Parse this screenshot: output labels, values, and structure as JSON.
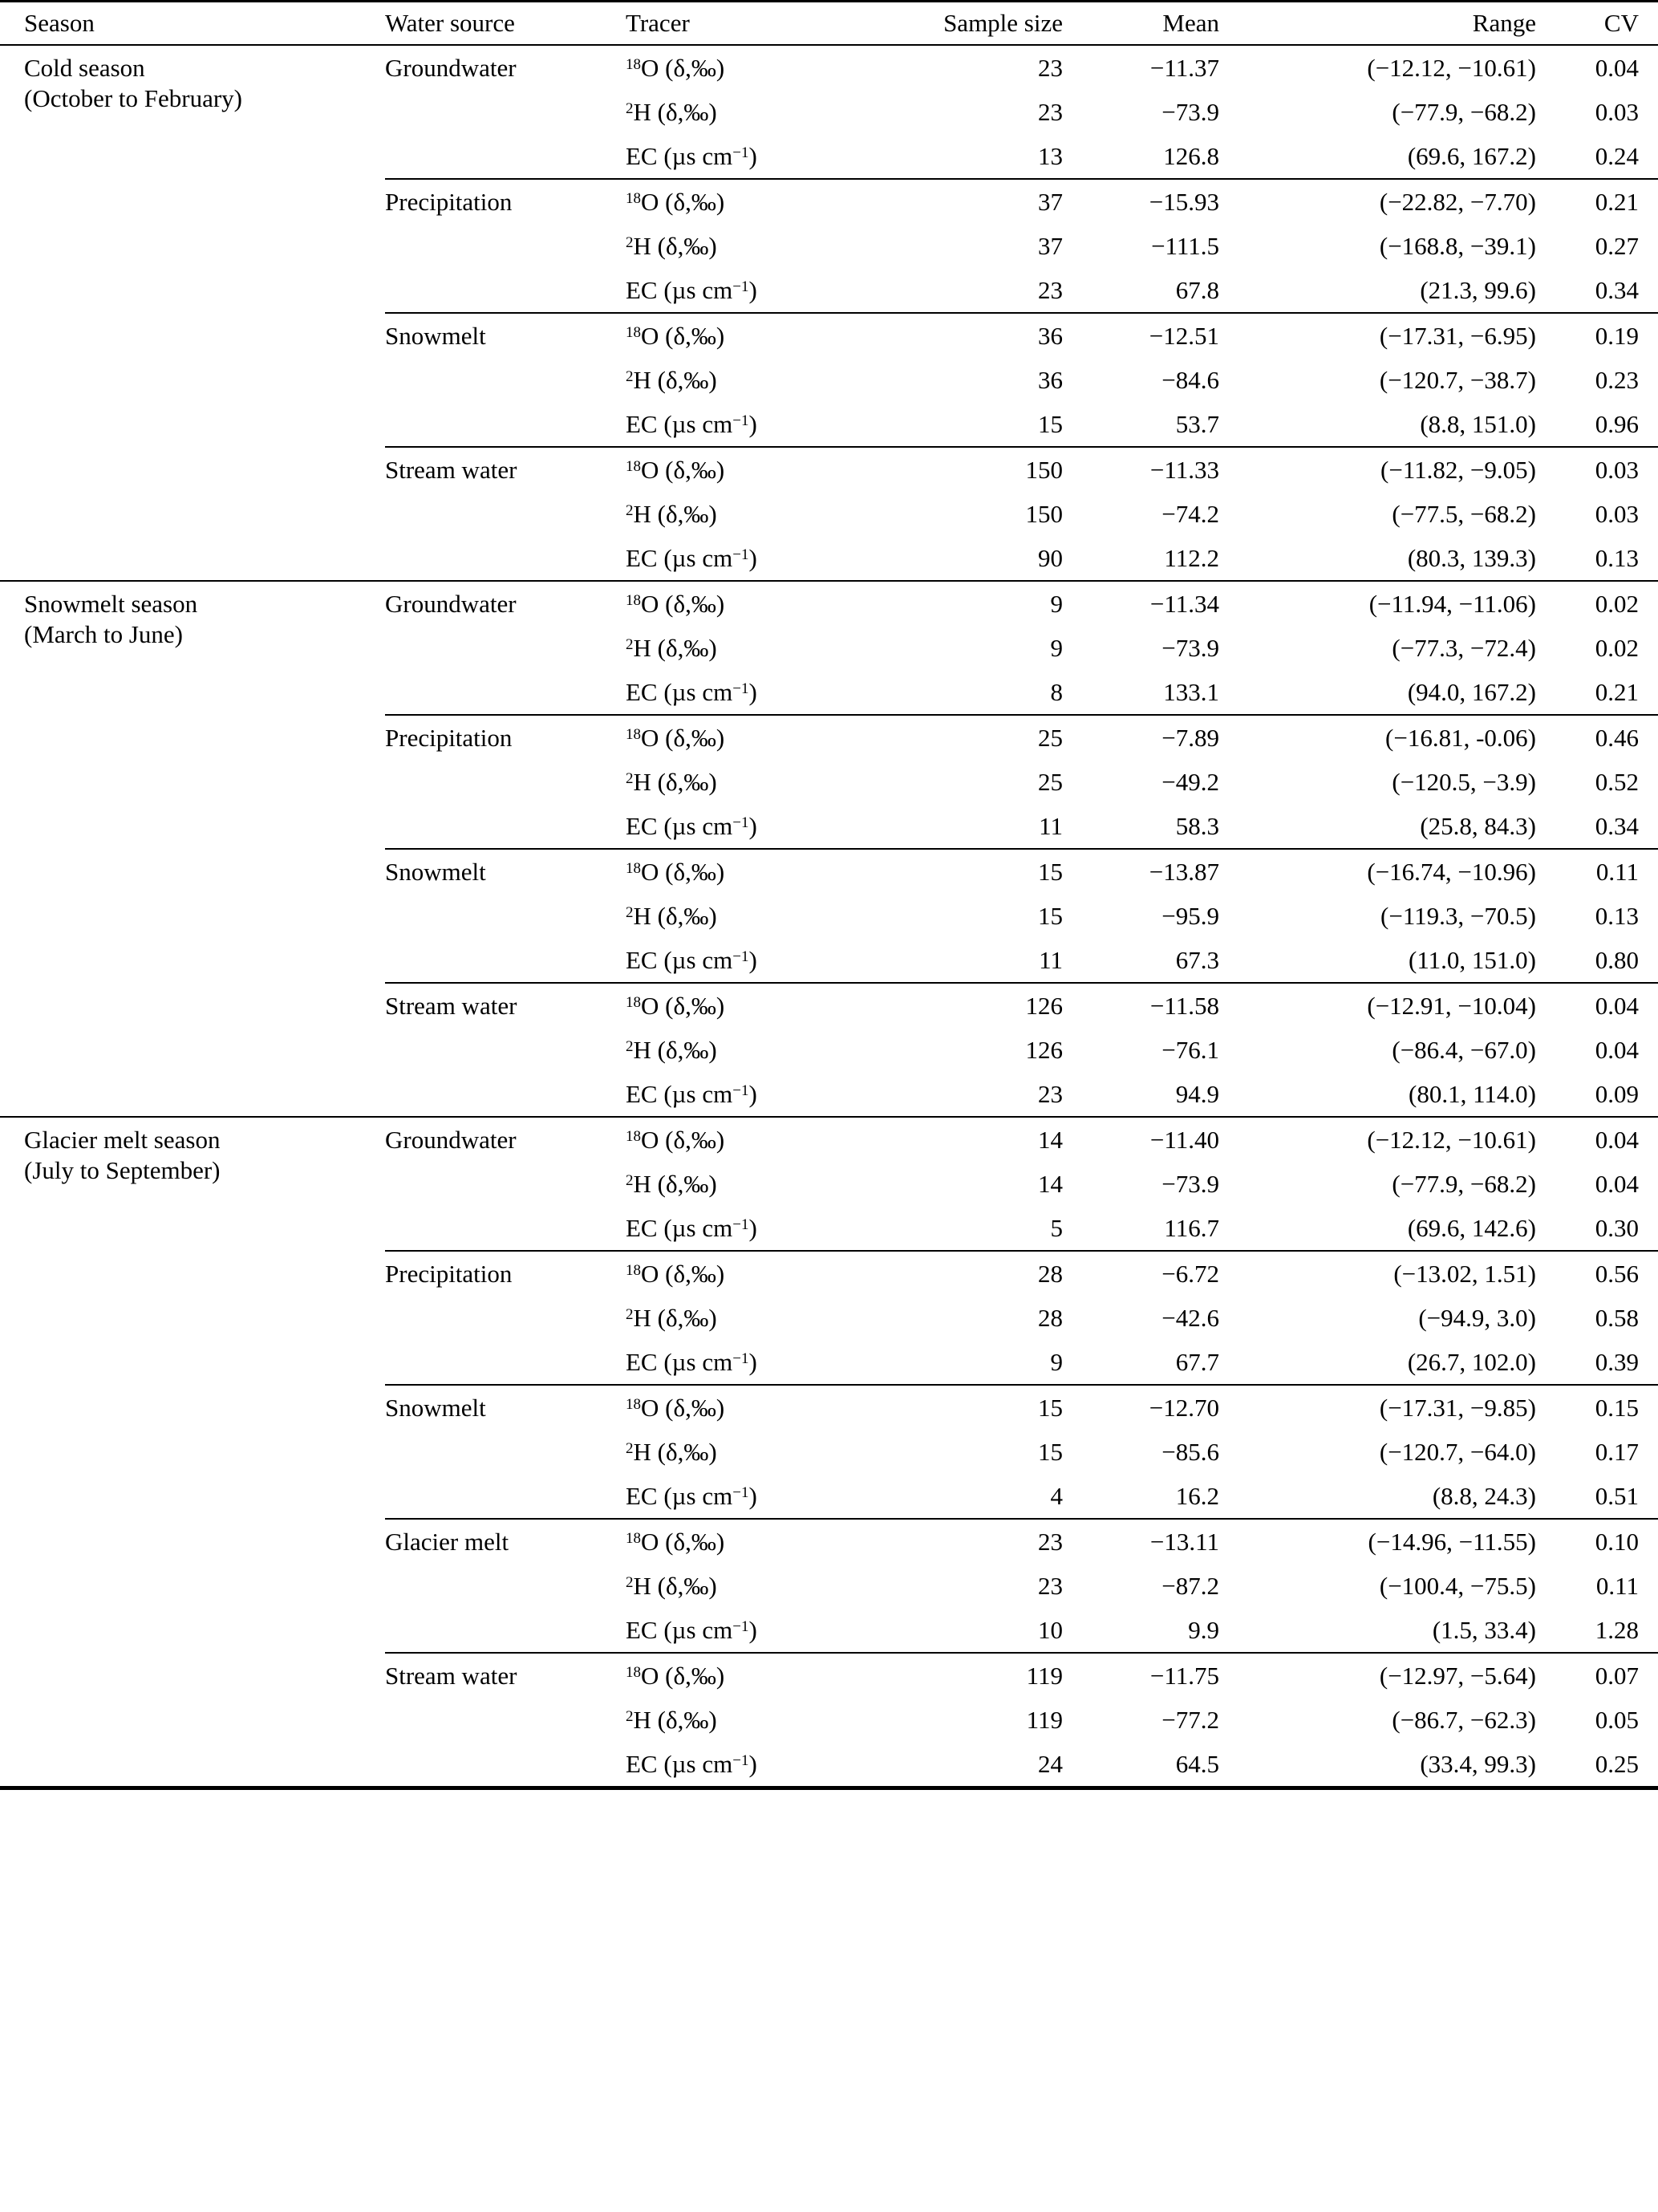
{
  "table": {
    "header": {
      "season": "Season",
      "water_source": "Water source",
      "tracer": "Tracer",
      "sample_size": "Sample size",
      "mean": "Mean",
      "range": "Range",
      "cv": "CV"
    },
    "tracer_types": {
      "o18": {
        "pre": "18",
        "mid": "O (δ,‰)",
        "post": "",
        "tail": ""
      },
      "h2": {
        "pre": "2",
        "mid": "H (δ,‰)",
        "post": "",
        "tail": ""
      },
      "ec": {
        "pre": "",
        "mid": "EC (µs cm",
        "post": "−1",
        "tail": ")"
      }
    },
    "seasons": [
      {
        "name": "Cold season",
        "months": "(October to February)",
        "groups": [
          {
            "source": "Groundwater",
            "rows": [
              {
                "t": "o18",
                "n": "23",
                "mean": "−11.37",
                "range": "(−12.12, −10.61)",
                "cv": "0.04"
              },
              {
                "t": "h2",
                "n": "23",
                "mean": "−73.9",
                "range": "(−77.9, −68.2)",
                "cv": "0.03"
              },
              {
                "t": "ec",
                "n": "13",
                "mean": "126.8",
                "range": "(69.6, 167.2)",
                "cv": "0.24"
              }
            ]
          },
          {
            "source": "Precipitation",
            "rows": [
              {
                "t": "o18",
                "n": "37",
                "mean": "−15.93",
                "range": "(−22.82, −7.70)",
                "cv": "0.21"
              },
              {
                "t": "h2",
                "n": "37",
                "mean": "−111.5",
                "range": "(−168.8, −39.1)",
                "cv": "0.27"
              },
              {
                "t": "ec",
                "n": "23",
                "mean": "67.8",
                "range": "(21.3, 99.6)",
                "cv": "0.34"
              }
            ]
          },
          {
            "source": "Snowmelt",
            "rows": [
              {
                "t": "o18",
                "n": "36",
                "mean": "−12.51",
                "range": "(−17.31, −6.95)",
                "cv": "0.19"
              },
              {
                "t": "h2",
                "n": "36",
                "mean": "−84.6",
                "range": "(−120.7, −38.7)",
                "cv": "0.23"
              },
              {
                "t": "ec",
                "n": "15",
                "mean": "53.7",
                "range": "(8.8, 151.0)",
                "cv": "0.96"
              }
            ]
          },
          {
            "source": "Stream water",
            "rows": [
              {
                "t": "o18",
                "n": "150",
                "mean": "−11.33",
                "range": "(−11.82, −9.05)",
                "cv": "0.03"
              },
              {
                "t": "h2",
                "n": "150",
                "mean": "−74.2",
                "range": "(−77.5, −68.2)",
                "cv": "0.03"
              },
              {
                "t": "ec",
                "n": "90",
                "mean": "112.2",
                "range": "(80.3, 139.3)",
                "cv": "0.13"
              }
            ]
          }
        ]
      },
      {
        "name": "Snowmelt season",
        "months": "(March to June)",
        "groups": [
          {
            "source": "Groundwater",
            "rows": [
              {
                "t": "o18",
                "n": "9",
                "mean": "−11.34",
                "range": "(−11.94, −11.06)",
                "cv": "0.02"
              },
              {
                "t": "h2",
                "n": "9",
                "mean": "−73.9",
                "range": "(−77.3, −72.4)",
                "cv": "0.02"
              },
              {
                "t": "ec",
                "n": "8",
                "mean": "133.1",
                "range": "(94.0, 167.2)",
                "cv": "0.21"
              }
            ]
          },
          {
            "source": "Precipitation",
            "rows": [
              {
                "t": "o18",
                "n": "25",
                "mean": "−7.89",
                "range": "(−16.81, -0.06)",
                "cv": "0.46"
              },
              {
                "t": "h2",
                "n": "25",
                "mean": "−49.2",
                "range": "(−120.5, −3.9)",
                "cv": "0.52"
              },
              {
                "t": "ec",
                "n": "11",
                "mean": "58.3",
                "range": "(25.8, 84.3)",
                "cv": "0.34"
              }
            ]
          },
          {
            "source": "Snowmelt",
            "rows": [
              {
                "t": "o18",
                "n": "15",
                "mean": "−13.87",
                "range": "(−16.74, −10.96)",
                "cv": "0.11"
              },
              {
                "t": "h2",
                "n": "15",
                "mean": "−95.9",
                "range": "(−119.3, −70.5)",
                "cv": "0.13"
              },
              {
                "t": "ec",
                "n": "11",
                "mean": "67.3",
                "range": "(11.0, 151.0)",
                "cv": "0.80"
              }
            ]
          },
          {
            "source": "Stream water",
            "rows": [
              {
                "t": "o18",
                "n": "126",
                "mean": "−11.58",
                "range": "(−12.91, −10.04)",
                "cv": "0.04"
              },
              {
                "t": "h2",
                "n": "126",
                "mean": "−76.1",
                "range": "(−86.4, −67.0)",
                "cv": "0.04"
              },
              {
                "t": "ec",
                "n": "23",
                "mean": "94.9",
                "range": "(80.1, 114.0)",
                "cv": "0.09"
              }
            ]
          }
        ]
      },
      {
        "name": "Glacier melt season",
        "months": "(July to September)",
        "groups": [
          {
            "source": "Groundwater",
            "rows": [
              {
                "t": "o18",
                "n": "14",
                "mean": "−11.40",
                "range": "(−12.12, −10.61)",
                "cv": "0.04"
              },
              {
                "t": "h2",
                "n": "14",
                "mean": "−73.9",
                "range": "(−77.9, −68.2)",
                "cv": "0.04"
              },
              {
                "t": "ec",
                "n": "5",
                "mean": "116.7",
                "range": "(69.6, 142.6)",
                "cv": "0.30"
              }
            ]
          },
          {
            "source": "Precipitation",
            "rows": [
              {
                "t": "o18",
                "n": "28",
                "mean": "−6.72",
                "range": "(−13.02, 1.51)",
                "cv": "0.56"
              },
              {
                "t": "h2",
                "n": "28",
                "mean": "−42.6",
                "range": "(−94.9, 3.0)",
                "cv": "0.58"
              },
              {
                "t": "ec",
                "n": "9",
                "mean": "67.7",
                "range": "(26.7, 102.0)",
                "cv": "0.39"
              }
            ]
          },
          {
            "source": "Snowmelt",
            "rows": [
              {
                "t": "o18",
                "n": "15",
                "mean": "−12.70",
                "range": "(−17.31, −9.85)",
                "cv": "0.15"
              },
              {
                "t": "h2",
                "n": "15",
                "mean": "−85.6",
                "range": "(−120.7, −64.0)",
                "cv": "0.17"
              },
              {
                "t": "ec",
                "n": "4",
                "mean": "16.2",
                "range": "(8.8, 24.3)",
                "cv": "0.51"
              }
            ]
          },
          {
            "source": "Glacier melt",
            "rows": [
              {
                "t": "o18",
                "n": "23",
                "mean": "−13.11",
                "range": "(−14.96, −11.55)",
                "cv": "0.10"
              },
              {
                "t": "h2",
                "n": "23",
                "mean": "−87.2",
                "range": "(−100.4, −75.5)",
                "cv": "0.11"
              },
              {
                "t": "ec",
                "n": "10",
                "mean": "9.9",
                "range": "(1.5, 33.4)",
                "cv": "1.28"
              }
            ]
          },
          {
            "source": "Stream water",
            "rows": [
              {
                "t": "o18",
                "n": "119",
                "mean": "−11.75",
                "range": "(−12.97, −5.64)",
                "cv": "0.07"
              },
              {
                "t": "h2",
                "n": "119",
                "mean": "−77.2",
                "range": "(−86.7, −62.3)",
                "cv": "0.05"
              },
              {
                "t": "ec",
                "n": "24",
                "mean": "64.5",
                "range": "(33.4, 99.3)",
                "cv": "0.25"
              }
            ]
          }
        ]
      }
    ]
  }
}
